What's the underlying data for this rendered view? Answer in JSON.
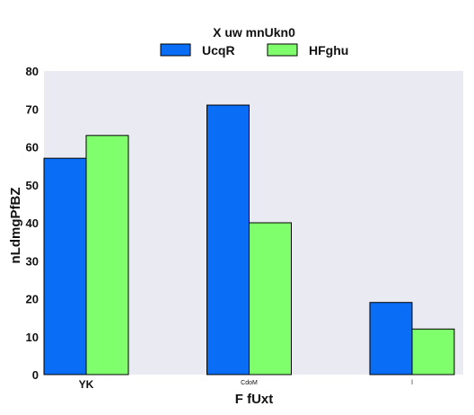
{
  "chart_data": {
    "type": "bar",
    "title": "",
    "xlabel": "F fUxt",
    "ylabel": "nLdmgPfBZ",
    "ylim": [
      0,
      80
    ],
    "yticks": [
      0,
      10,
      20,
      30,
      40,
      50,
      60,
      70,
      80
    ],
    "categories": [
      "YK",
      "CdoM",
      "l"
    ],
    "legend": {
      "title": "X uw mnUkn0",
      "placement": "top-center",
      "columns": 2
    },
    "grid": false,
    "background_color": "#eaeaf2",
    "series": [
      {
        "name": "UcqR",
        "color": "#0a6df5",
        "values": [
          57,
          71,
          19
        ]
      },
      {
        "name": "HFghu",
        "color": "#80ff6c",
        "values": [
          63,
          40,
          12
        ]
      }
    ]
  }
}
